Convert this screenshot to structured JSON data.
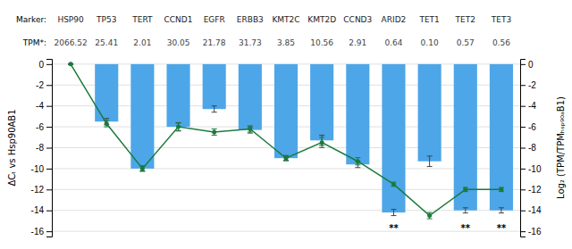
{
  "chart_data": {
    "type": "bar",
    "categories": [
      "HSP90",
      "TP53",
      "TERT",
      "CCND1",
      "EGFR",
      "ERBB3",
      "KMT2C",
      "KMT2D",
      "CCND3",
      "ARID2",
      "TET1",
      "TET2",
      "TET3"
    ],
    "categories_label": "Marker:",
    "tpm_label": "TPM*:",
    "tpm_values": [
      "2066.52",
      "25.41",
      "2.01",
      "30.05",
      "21.78",
      "31.73",
      "3.85",
      "10.56",
      "2.91",
      "0.64",
      "0.10",
      "0.57",
      "0.56"
    ],
    "series": [
      {
        "type": "bar",
        "color": "#4da6e8",
        "axis": "y",
        "values": [
          0,
          -5.5,
          -10.0,
          -6.0,
          -4.3,
          -6.3,
          -9.0,
          -7.3,
          -9.6,
          -14.2,
          -9.3,
          -14.0,
          -14.0
        ],
        "errors": [
          0.05,
          0.3,
          0.25,
          0.4,
          0.3,
          0.3,
          0.25,
          0.5,
          0.3,
          0.3,
          0.5,
          0.25,
          0.25
        ]
      },
      {
        "type": "line",
        "color": "#1a7a3c",
        "marker": "circle",
        "axis": "y2",
        "values": [
          0,
          -5.7,
          -10.0,
          -6.0,
          -6.5,
          -6.2,
          -9.0,
          -7.5,
          -9.3,
          -11.5,
          -14.5,
          -12.0,
          -12.0
        ],
        "errors": [
          0.0,
          0.3,
          0.25,
          0.35,
          0.3,
          0.3,
          0.2,
          0.5,
          0.35,
          0.2,
          0.3,
          0.2,
          0.2
        ]
      }
    ],
    "significance": [
      null,
      null,
      null,
      null,
      null,
      null,
      null,
      null,
      null,
      "**",
      null,
      "**",
      "**"
    ],
    "ylabel": "ΔCₜ vs Hsp90AB1",
    "y2label": "Log₂ (TPM/TPMₕₛₚ₉₀ₐB1)",
    "ylim": [
      -16.5,
      0.5
    ],
    "yticks": [
      0,
      -2,
      -4,
      -6,
      -8,
      -10,
      -12,
      -14,
      -16
    ],
    "y2lim": [
      -16.5,
      0.5
    ],
    "y2ticks": [
      0,
      -2,
      -4,
      -6,
      -8,
      -10,
      -12,
      -14,
      -16
    ],
    "grid": true,
    "tick_labels": "y"
  }
}
